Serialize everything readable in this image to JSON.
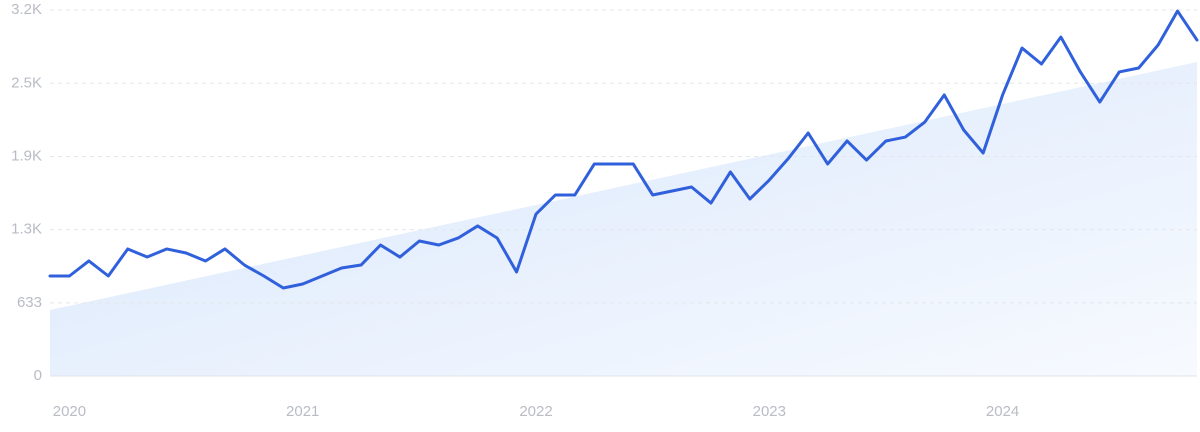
{
  "chart_data": {
    "type": "line",
    "categories": [
      null,
      "2020",
      null,
      null,
      null,
      null,
      null,
      null,
      null,
      null,
      null,
      null,
      null,
      "2021",
      null,
      null,
      null,
      null,
      null,
      null,
      null,
      null,
      null,
      null,
      null,
      "2022",
      null,
      null,
      null,
      null,
      null,
      null,
      null,
      null,
      null,
      null,
      null,
      "2023",
      null,
      null,
      null,
      null,
      null,
      null,
      null,
      null,
      null,
      null,
      null,
      "2024",
      null,
      null,
      null,
      null,
      null,
      null,
      null,
      null,
      null,
      null
    ],
    "series": [
      {
        "color": "#3060db",
        "values": [
          865,
          865,
          995,
          865,
          1099,
          1029,
          1099,
          1064,
          995,
          1099,
          960,
          865,
          761,
          796,
          865,
          934,
          960,
          1133,
          1029,
          1168,
          1133,
          1194,
          1298,
          1194,
          900,
          1401,
          1566,
          1566,
          1834,
          1834,
          1834,
          1566,
          1600,
          1635,
          1496,
          1765,
          1531,
          1695,
          1886,
          2102,
          1834,
          2033,
          1868,
          2033,
          2067,
          2197,
          2431,
          2128,
          1929,
          2431,
          2837,
          2699,
          2932,
          2630,
          2370,
          2630,
          2664,
          2863,
          3157,
          2906
        ]
      }
    ],
    "trend": [
      571,
      2716
    ],
    "ylim": [
      0,
      3166
    ],
    "yticks": [
      0,
      633,
      {
        "value": 1266,
        "label": "1.3K"
      },
      {
        "value": 1899,
        "label": "1.9K"
      },
      {
        "value": 2532,
        "label": "2.5K"
      },
      {
        "value": 3166,
        "label": "3.2K"
      }
    ],
    "grid": true
  }
}
